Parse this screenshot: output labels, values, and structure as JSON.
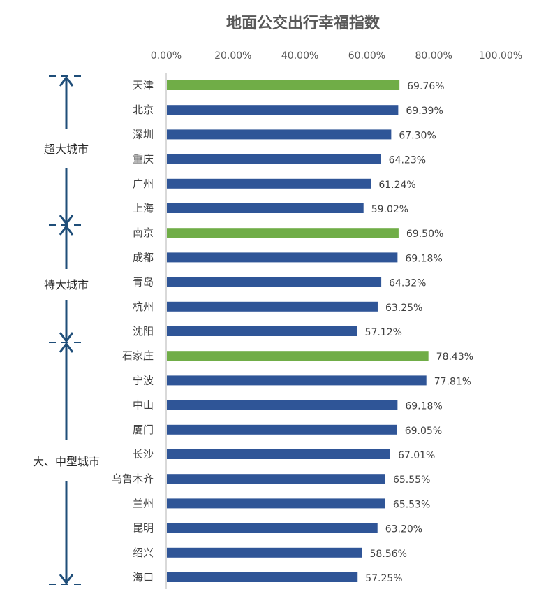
{
  "chart_data": {
    "type": "bar",
    "orientation": "horizontal",
    "title": "地面公交出行幸福指数",
    "xlim": [
      0,
      100
    ],
    "x_axis_position": "top",
    "x_ticks": [
      "0.00%",
      "20.00%",
      "40.00%",
      "60.00%",
      "80.00%",
      "100.00%"
    ],
    "grid": false,
    "categories": [
      "天津",
      "北京",
      "深圳",
      "重庆",
      "广州",
      "上海",
      "南京",
      "成都",
      "青岛",
      "杭州",
      "沈阳",
      "石家庄",
      "宁波",
      "中山",
      "厦门",
      "长沙",
      "乌鲁木齐",
      "兰州",
      "昆明",
      "绍兴",
      "海口"
    ],
    "values": [
      69.76,
      69.39,
      67.3,
      64.23,
      61.24,
      59.02,
      69.5,
      69.18,
      64.32,
      63.25,
      57.12,
      78.43,
      77.81,
      69.18,
      69.05,
      67.01,
      65.55,
      65.53,
      63.2,
      58.56,
      57.25
    ],
    "value_labels": [
      "69.76%",
      "69.39%",
      "67.30%",
      "64.23%",
      "61.24%",
      "59.02%",
      "69.50%",
      "69.18%",
      "64.32%",
      "63.25%",
      "57.12%",
      "78.43%",
      "77.81%",
      "69.18%",
      "69.05%",
      "67.01%",
      "65.55%",
      "65.53%",
      "63.20%",
      "58.56%",
      "57.25%"
    ],
    "highlighted": [
      0,
      6,
      11
    ],
    "groups": [
      {
        "label": "超大城市",
        "from": 0,
        "to": 5
      },
      {
        "label": "特大城市",
        "from": 6,
        "to": 10
      },
      {
        "label": "大、中型城市",
        "from": 11,
        "to": 20
      }
    ],
    "colors": {
      "bar": "#2F5597",
      "highlight": "#70AD47",
      "bracket": "#1F4E79",
      "axis": "#D9D9D9"
    }
  }
}
